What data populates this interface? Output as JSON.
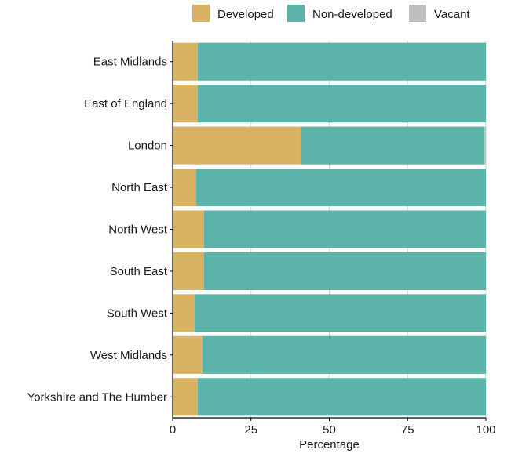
{
  "chart_data": {
    "type": "bar",
    "orientation": "horizontal",
    "stacked": true,
    "categories": [
      "East Midlands",
      "East of England",
      "London",
      "North East",
      "North West",
      "South East",
      "South West",
      "West Midlands",
      "Yorkshire and The Humber"
    ],
    "series": [
      {
        "name": "Developed",
        "color": "#D9B264",
        "values": [
          8,
          8,
          41,
          7.5,
          10,
          10,
          7,
          9.5,
          8
        ]
      },
      {
        "name": "Non-developed",
        "color": "#5BB3A9",
        "values": [
          92,
          92,
          58.5,
          92.5,
          90,
          90,
          93,
          90.5,
          92
        ]
      },
      {
        "name": "Vacant",
        "color": "#BEBEBE",
        "values": [
          0,
          0,
          0.5,
          0,
          0,
          0,
          0,
          0,
          0
        ]
      }
    ],
    "xlabel": "Percentage",
    "ylabel": "",
    "xlim": [
      0,
      100
    ],
    "x_ticks": [
      0,
      25,
      50,
      75,
      100
    ],
    "grid": true,
    "legend_position": "top"
  }
}
